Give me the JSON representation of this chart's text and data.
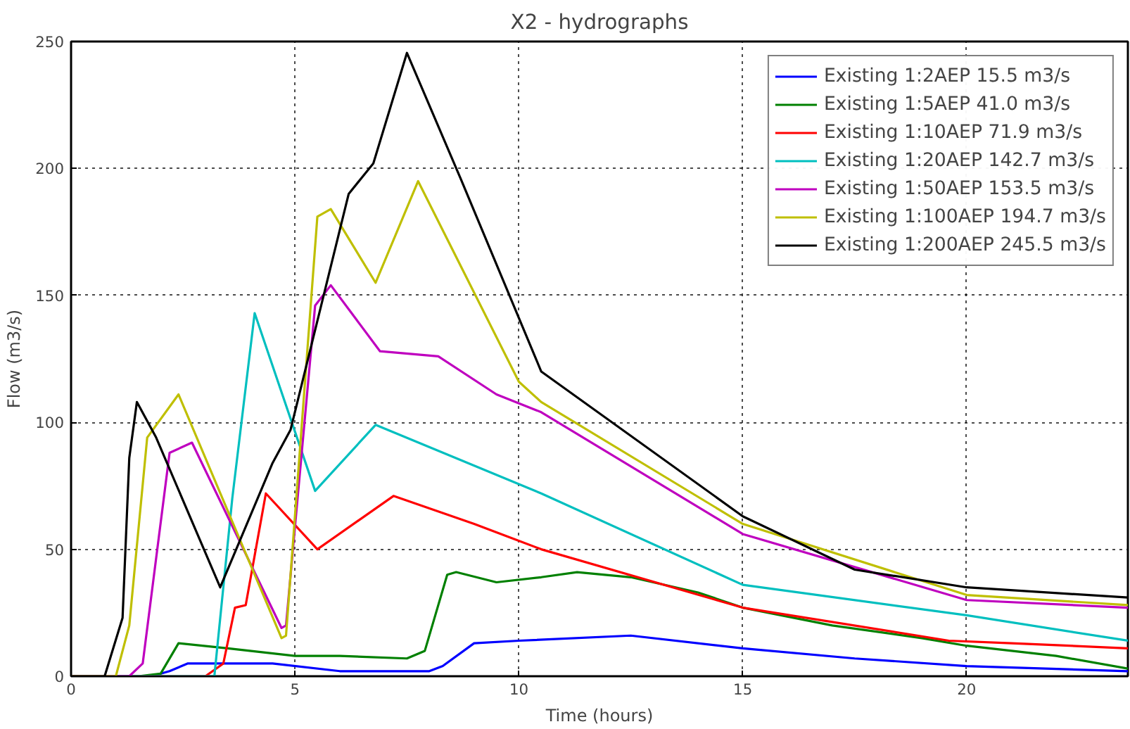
{
  "chart_data": {
    "type": "line",
    "title": "X2 - hydrographs",
    "xlabel": "Time (hours)",
    "ylabel": "Flow (m3/s)",
    "xlim": [
      0,
      23.6
    ],
    "ylim": [
      0,
      250
    ],
    "xticks": [
      0,
      5,
      10,
      15,
      20
    ],
    "yticks": [
      0,
      50,
      100,
      150,
      200,
      250
    ],
    "grid": true,
    "legend": "top right",
    "line_style": "solid",
    "series": [
      {
        "name": "Existing 1:2AEP 15.5 m3/s",
        "color": "#0000ff",
        "x": [
          0,
          1.8,
          2.2,
          2.6,
          4.5,
          6,
          8,
          8.3,
          9,
          10,
          12.5,
          15,
          17.5,
          20,
          23.6
        ],
        "values": [
          0,
          0,
          2,
          5,
          5,
          2,
          2,
          4,
          13,
          14,
          16,
          11,
          7,
          4,
          2
        ]
      },
      {
        "name": "Existing 1:5AEP 41.0 m3/s",
        "color": "#008000",
        "x": [
          0,
          1.5,
          2,
          2.4,
          3.5,
          5,
          6,
          7.5,
          7.9,
          8.4,
          8.6,
          9.5,
          10.5,
          11.3,
          12.5,
          14,
          15,
          17,
          19,
          20,
          22,
          23.6
        ],
        "values": [
          0,
          0,
          1,
          13,
          11,
          8,
          8,
          7,
          10,
          40,
          41,
          37,
          39,
          41,
          39,
          33,
          27,
          20,
          15,
          12,
          8,
          3
        ]
      },
      {
        "name": "Existing 1:10AEP 71.9 m3/s",
        "color": "#ff0000",
        "x": [
          0,
          3.0,
          3.4,
          3.66,
          3.9,
          4.35,
          5.5,
          7.2,
          9,
          10.5,
          15,
          19.6,
          21,
          23.6
        ],
        "values": [
          0,
          0,
          5,
          27,
          28,
          72,
          50,
          71,
          60,
          50,
          27,
          14,
          13,
          11
        ]
      },
      {
        "name": "Existing 1:20AEP 142.7 m3/s",
        "color": "#00bfbf",
        "x": [
          0,
          3.2,
          3.6,
          4.1,
          5.45,
          6.8,
          10.5,
          15,
          20,
          23.6
        ],
        "values": [
          0,
          0,
          70,
          143,
          73,
          99,
          72,
          36,
          24,
          14
        ]
      },
      {
        "name": "Existing 1:50AEP 153.5 m3/s",
        "color": "#bf00bf",
        "x": [
          0,
          1.3,
          1.6,
          2.2,
          2.7,
          4.7,
          4.8,
          5.45,
          5.8,
          6.9,
          8.2,
          9.5,
          10.5,
          15,
          20,
          23.6
        ],
        "values": [
          0,
          0,
          5,
          88,
          92,
          19,
          20,
          146,
          154,
          128,
          126,
          111,
          104,
          56,
          30,
          27
        ]
      },
      {
        "name": "Existing 1:100AEP 194.7 m3/s",
        "color": "#bfbf00",
        "x": [
          0,
          1.0,
          1.3,
          1.7,
          2.4,
          4.7,
          4.8,
          5.5,
          5.8,
          6.8,
          7.75,
          10,
          10.5,
          15,
          20,
          23.6
        ],
        "values": [
          0,
          0,
          20,
          94,
          111,
          15,
          16,
          181,
          184,
          155,
          195,
          116,
          108,
          60,
          32,
          28
        ]
      },
      {
        "name": "Existing 1:200AEP 245.5 m3/s",
        "color": "#000000",
        "x": [
          0,
          0.75,
          1.15,
          1.3,
          1.47,
          1.9,
          3.33,
          4.5,
          4.9,
          6.2,
          6.75,
          7.5,
          8.7,
          10.5,
          15,
          17.5,
          20,
          23.6
        ],
        "values": [
          0,
          0,
          23,
          86,
          108,
          94,
          35,
          84,
          97,
          190,
          202,
          245.5,
          196,
          120,
          63,
          42,
          35,
          31
        ]
      }
    ]
  }
}
